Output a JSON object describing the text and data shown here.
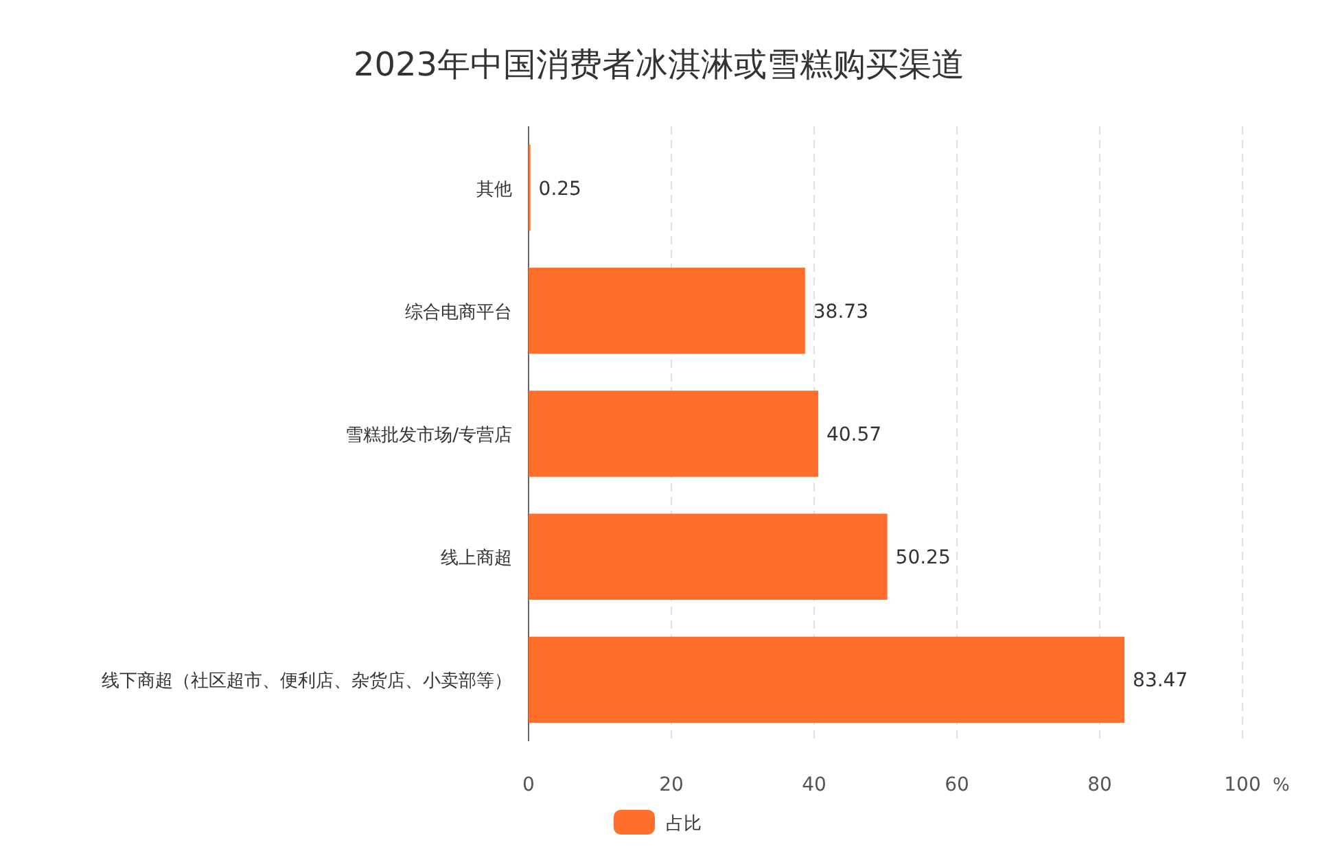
{
  "chart_data": {
    "type": "bar",
    "orientation": "horizontal",
    "title": "2023年中国消费者冰淇淋或雪糕购买渠道",
    "categories": [
      "其他",
      "综合电商平台",
      "雪糕批发市场/专营店",
      "线上商超",
      "线下商超（社区超市、便利店、杂货店、小卖部等）"
    ],
    "series": [
      {
        "name": "占比",
        "color": "#ff6e2b",
        "values": [
          0.25,
          38.73,
          40.57,
          50.25,
          83.47
        ]
      }
    ],
    "xlim": [
      0,
      100
    ],
    "xticks": [
      0,
      20,
      40,
      60,
      80,
      100
    ],
    "xlabel": "%",
    "grid": "x",
    "legend": "bottom",
    "data_labels": true
  }
}
